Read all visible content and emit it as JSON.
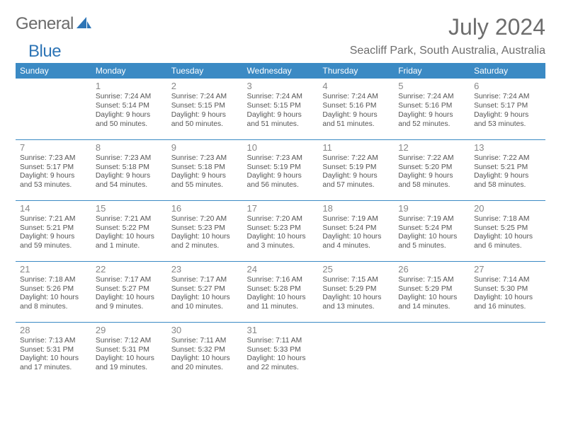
{
  "logo": {
    "text1": "General",
    "text2": "Blue"
  },
  "title": "July 2024",
  "location": "Seacliff Park, South Australia, Australia",
  "colors": {
    "header_bg": "#3b8ac4",
    "header_text": "#ffffff",
    "body_text": "#555555",
    "day_num": "#888888",
    "title_text": "#6d6d6d",
    "row_border": "#3b8ac4"
  },
  "daysOfWeek": [
    "Sunday",
    "Monday",
    "Tuesday",
    "Wednesday",
    "Thursday",
    "Friday",
    "Saturday"
  ],
  "weeks": [
    [
      {
        "day": "",
        "sunrise": "",
        "sunset": "",
        "daylight1": "",
        "daylight2": ""
      },
      {
        "day": "1",
        "sunrise": "Sunrise: 7:24 AM",
        "sunset": "Sunset: 5:14 PM",
        "daylight1": "Daylight: 9 hours",
        "daylight2": "and 50 minutes."
      },
      {
        "day": "2",
        "sunrise": "Sunrise: 7:24 AM",
        "sunset": "Sunset: 5:15 PM",
        "daylight1": "Daylight: 9 hours",
        "daylight2": "and 50 minutes."
      },
      {
        "day": "3",
        "sunrise": "Sunrise: 7:24 AM",
        "sunset": "Sunset: 5:15 PM",
        "daylight1": "Daylight: 9 hours",
        "daylight2": "and 51 minutes."
      },
      {
        "day": "4",
        "sunrise": "Sunrise: 7:24 AM",
        "sunset": "Sunset: 5:16 PM",
        "daylight1": "Daylight: 9 hours",
        "daylight2": "and 51 minutes."
      },
      {
        "day": "5",
        "sunrise": "Sunrise: 7:24 AM",
        "sunset": "Sunset: 5:16 PM",
        "daylight1": "Daylight: 9 hours",
        "daylight2": "and 52 minutes."
      },
      {
        "day": "6",
        "sunrise": "Sunrise: 7:24 AM",
        "sunset": "Sunset: 5:17 PM",
        "daylight1": "Daylight: 9 hours",
        "daylight2": "and 53 minutes."
      }
    ],
    [
      {
        "day": "7",
        "sunrise": "Sunrise: 7:23 AM",
        "sunset": "Sunset: 5:17 PM",
        "daylight1": "Daylight: 9 hours",
        "daylight2": "and 53 minutes."
      },
      {
        "day": "8",
        "sunrise": "Sunrise: 7:23 AM",
        "sunset": "Sunset: 5:18 PM",
        "daylight1": "Daylight: 9 hours",
        "daylight2": "and 54 minutes."
      },
      {
        "day": "9",
        "sunrise": "Sunrise: 7:23 AM",
        "sunset": "Sunset: 5:18 PM",
        "daylight1": "Daylight: 9 hours",
        "daylight2": "and 55 minutes."
      },
      {
        "day": "10",
        "sunrise": "Sunrise: 7:23 AM",
        "sunset": "Sunset: 5:19 PM",
        "daylight1": "Daylight: 9 hours",
        "daylight2": "and 56 minutes."
      },
      {
        "day": "11",
        "sunrise": "Sunrise: 7:22 AM",
        "sunset": "Sunset: 5:19 PM",
        "daylight1": "Daylight: 9 hours",
        "daylight2": "and 57 minutes."
      },
      {
        "day": "12",
        "sunrise": "Sunrise: 7:22 AM",
        "sunset": "Sunset: 5:20 PM",
        "daylight1": "Daylight: 9 hours",
        "daylight2": "and 58 minutes."
      },
      {
        "day": "13",
        "sunrise": "Sunrise: 7:22 AM",
        "sunset": "Sunset: 5:21 PM",
        "daylight1": "Daylight: 9 hours",
        "daylight2": "and 58 minutes."
      }
    ],
    [
      {
        "day": "14",
        "sunrise": "Sunrise: 7:21 AM",
        "sunset": "Sunset: 5:21 PM",
        "daylight1": "Daylight: 9 hours",
        "daylight2": "and 59 minutes."
      },
      {
        "day": "15",
        "sunrise": "Sunrise: 7:21 AM",
        "sunset": "Sunset: 5:22 PM",
        "daylight1": "Daylight: 10 hours",
        "daylight2": "and 1 minute."
      },
      {
        "day": "16",
        "sunrise": "Sunrise: 7:20 AM",
        "sunset": "Sunset: 5:23 PM",
        "daylight1": "Daylight: 10 hours",
        "daylight2": "and 2 minutes."
      },
      {
        "day": "17",
        "sunrise": "Sunrise: 7:20 AM",
        "sunset": "Sunset: 5:23 PM",
        "daylight1": "Daylight: 10 hours",
        "daylight2": "and 3 minutes."
      },
      {
        "day": "18",
        "sunrise": "Sunrise: 7:19 AM",
        "sunset": "Sunset: 5:24 PM",
        "daylight1": "Daylight: 10 hours",
        "daylight2": "and 4 minutes."
      },
      {
        "day": "19",
        "sunrise": "Sunrise: 7:19 AM",
        "sunset": "Sunset: 5:24 PM",
        "daylight1": "Daylight: 10 hours",
        "daylight2": "and 5 minutes."
      },
      {
        "day": "20",
        "sunrise": "Sunrise: 7:18 AM",
        "sunset": "Sunset: 5:25 PM",
        "daylight1": "Daylight: 10 hours",
        "daylight2": "and 6 minutes."
      }
    ],
    [
      {
        "day": "21",
        "sunrise": "Sunrise: 7:18 AM",
        "sunset": "Sunset: 5:26 PM",
        "daylight1": "Daylight: 10 hours",
        "daylight2": "and 8 minutes."
      },
      {
        "day": "22",
        "sunrise": "Sunrise: 7:17 AM",
        "sunset": "Sunset: 5:27 PM",
        "daylight1": "Daylight: 10 hours",
        "daylight2": "and 9 minutes."
      },
      {
        "day": "23",
        "sunrise": "Sunrise: 7:17 AM",
        "sunset": "Sunset: 5:27 PM",
        "daylight1": "Daylight: 10 hours",
        "daylight2": "and 10 minutes."
      },
      {
        "day": "24",
        "sunrise": "Sunrise: 7:16 AM",
        "sunset": "Sunset: 5:28 PM",
        "daylight1": "Daylight: 10 hours",
        "daylight2": "and 11 minutes."
      },
      {
        "day": "25",
        "sunrise": "Sunrise: 7:15 AM",
        "sunset": "Sunset: 5:29 PM",
        "daylight1": "Daylight: 10 hours",
        "daylight2": "and 13 minutes."
      },
      {
        "day": "26",
        "sunrise": "Sunrise: 7:15 AM",
        "sunset": "Sunset: 5:29 PM",
        "daylight1": "Daylight: 10 hours",
        "daylight2": "and 14 minutes."
      },
      {
        "day": "27",
        "sunrise": "Sunrise: 7:14 AM",
        "sunset": "Sunset: 5:30 PM",
        "daylight1": "Daylight: 10 hours",
        "daylight2": "and 16 minutes."
      }
    ],
    [
      {
        "day": "28",
        "sunrise": "Sunrise: 7:13 AM",
        "sunset": "Sunset: 5:31 PM",
        "daylight1": "Daylight: 10 hours",
        "daylight2": "and 17 minutes."
      },
      {
        "day": "29",
        "sunrise": "Sunrise: 7:12 AM",
        "sunset": "Sunset: 5:31 PM",
        "daylight1": "Daylight: 10 hours",
        "daylight2": "and 19 minutes."
      },
      {
        "day": "30",
        "sunrise": "Sunrise: 7:11 AM",
        "sunset": "Sunset: 5:32 PM",
        "daylight1": "Daylight: 10 hours",
        "daylight2": "and 20 minutes."
      },
      {
        "day": "31",
        "sunrise": "Sunrise: 7:11 AM",
        "sunset": "Sunset: 5:33 PM",
        "daylight1": "Daylight: 10 hours",
        "daylight2": "and 22 minutes."
      },
      {
        "day": "",
        "sunrise": "",
        "sunset": "",
        "daylight1": "",
        "daylight2": ""
      },
      {
        "day": "",
        "sunrise": "",
        "sunset": "",
        "daylight1": "",
        "daylight2": ""
      },
      {
        "day": "",
        "sunrise": "",
        "sunset": "",
        "daylight1": "",
        "daylight2": ""
      }
    ]
  ]
}
